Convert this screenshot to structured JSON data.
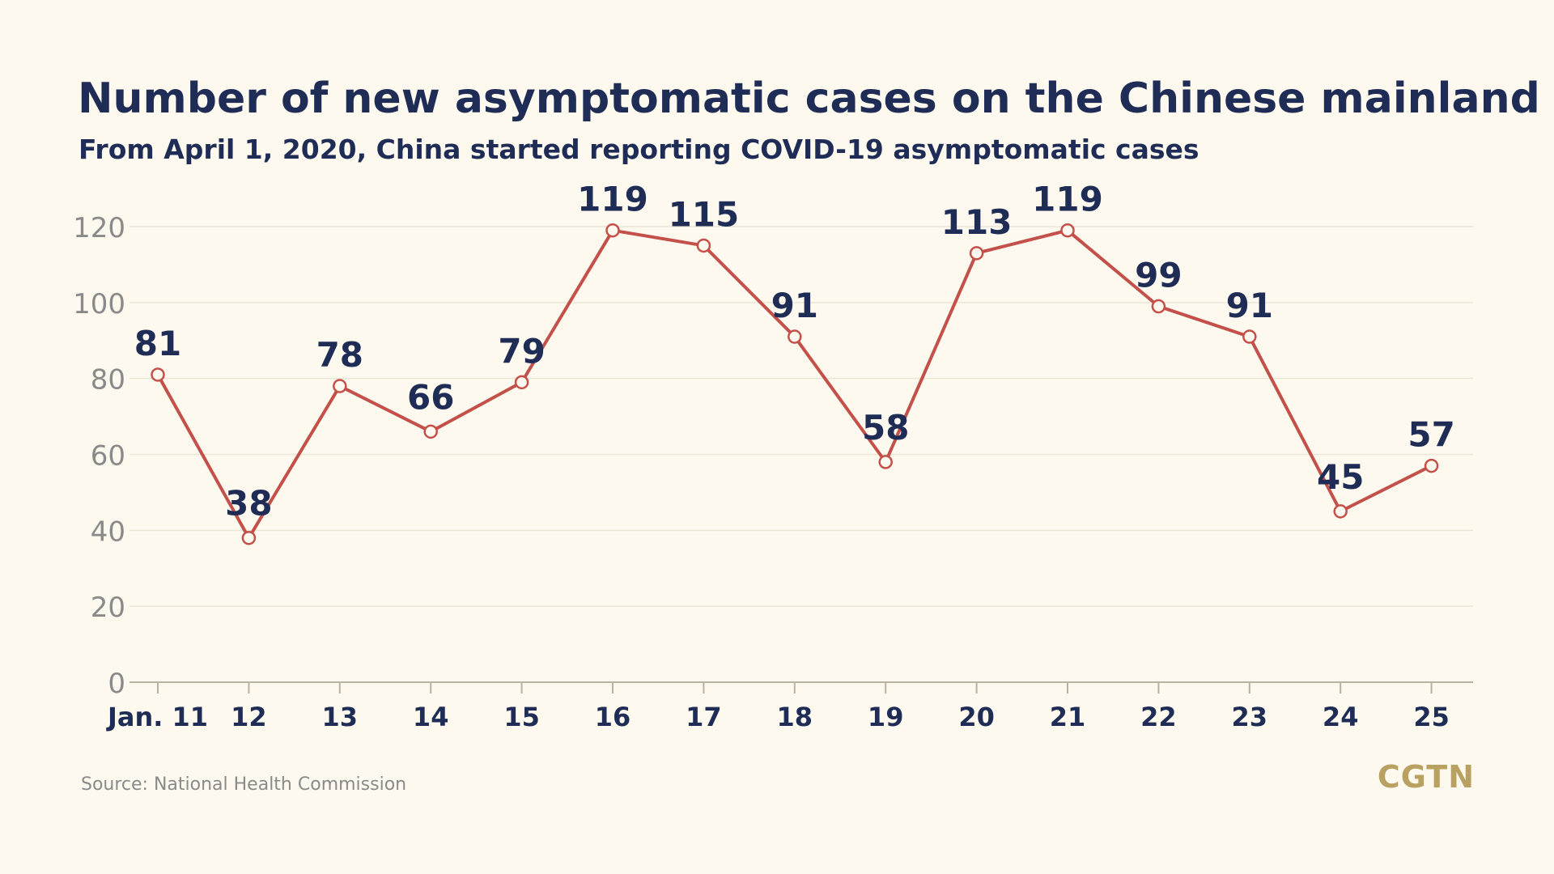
{
  "header": {
    "title": "Number of new asymptomatic cases on the Chinese mainland",
    "subtitle": "From April 1, 2020, China started reporting COVID-19 asymptomatic cases"
  },
  "footer": {
    "source": "Source: National Health Commission",
    "logo": "CGTN"
  },
  "colors": {
    "line": "#c4504a",
    "marker_fill": "#fdf9ef",
    "label": "#1f2d56",
    "tick": "#8a8a8a",
    "grid": "#ece6d6",
    "axis": "#b8b2a2",
    "logo": "#b9a162"
  },
  "chart_data": {
    "type": "line",
    "categories": [
      "Jan. 11",
      "12",
      "13",
      "14",
      "15",
      "16",
      "17",
      "18",
      "19",
      "20",
      "21",
      "22",
      "23",
      "24",
      "25"
    ],
    "series": [
      {
        "values": [
          81,
          38,
          78,
          66,
          79,
          119,
          115,
          91,
          58,
          113,
          119,
          99,
          91,
          45,
          57
        ]
      }
    ],
    "ylim": [
      0,
      120
    ],
    "yticks": [
      0,
      20,
      40,
      60,
      80,
      100,
      120
    ],
    "xlabel": "",
    "ylabel": "",
    "grid": true,
    "legend": "none"
  }
}
